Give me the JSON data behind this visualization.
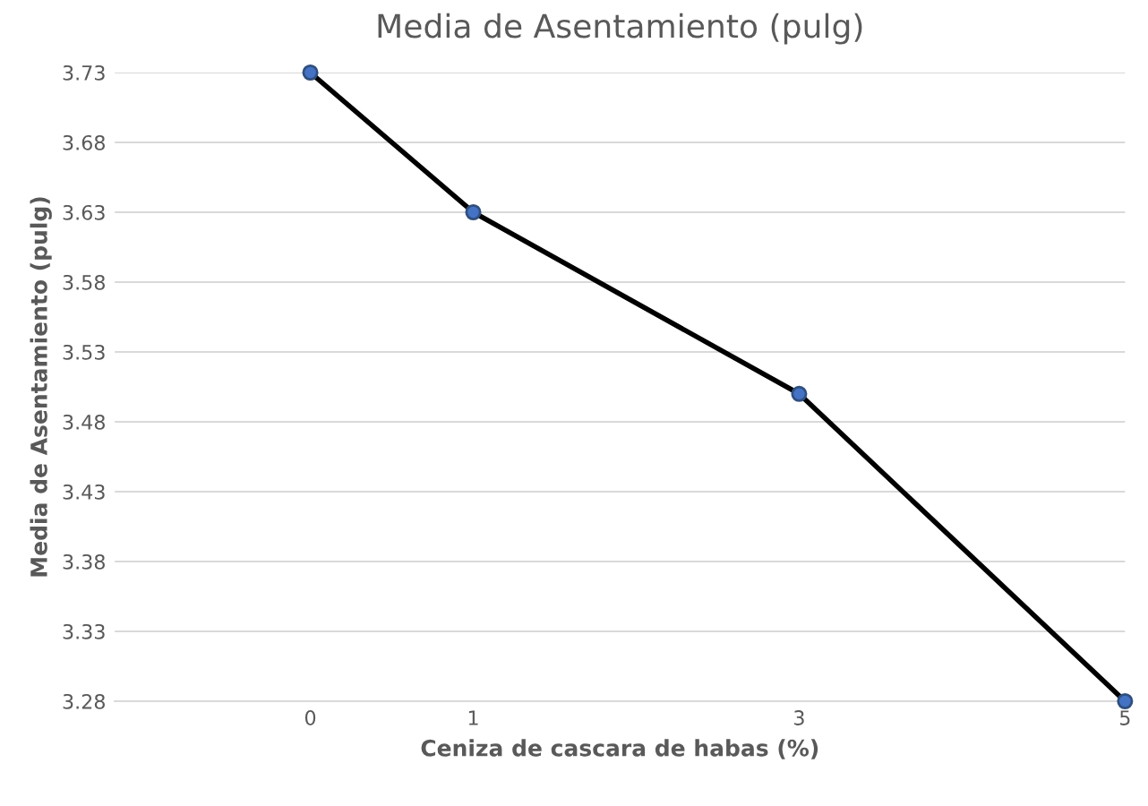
{
  "chart_data": {
    "type": "line",
    "title": "Media de Asentamiento (pulg)",
    "xlabel": "Ceniza de cascara de habas (%)",
    "ylabel": "Media de Asentamiento (pulg)",
    "x": [
      0,
      1,
      3,
      5
    ],
    "series": [
      {
        "color": "#000000",
        "values": [
          3.73,
          3.63,
          3.5,
          3.28
        ]
      }
    ],
    "xlim": [
      -1.2,
      5
    ],
    "xticks": [
      0,
      1,
      3,
      5
    ],
    "ylim": [
      3.28,
      3.73
    ],
    "yticks": [
      3.28,
      3.33,
      3.38,
      3.43,
      3.48,
      3.53,
      3.58,
      3.63,
      3.68,
      3.73
    ],
    "grid": "y",
    "marker": "circle",
    "line_style": "solid",
    "legend": false
  }
}
